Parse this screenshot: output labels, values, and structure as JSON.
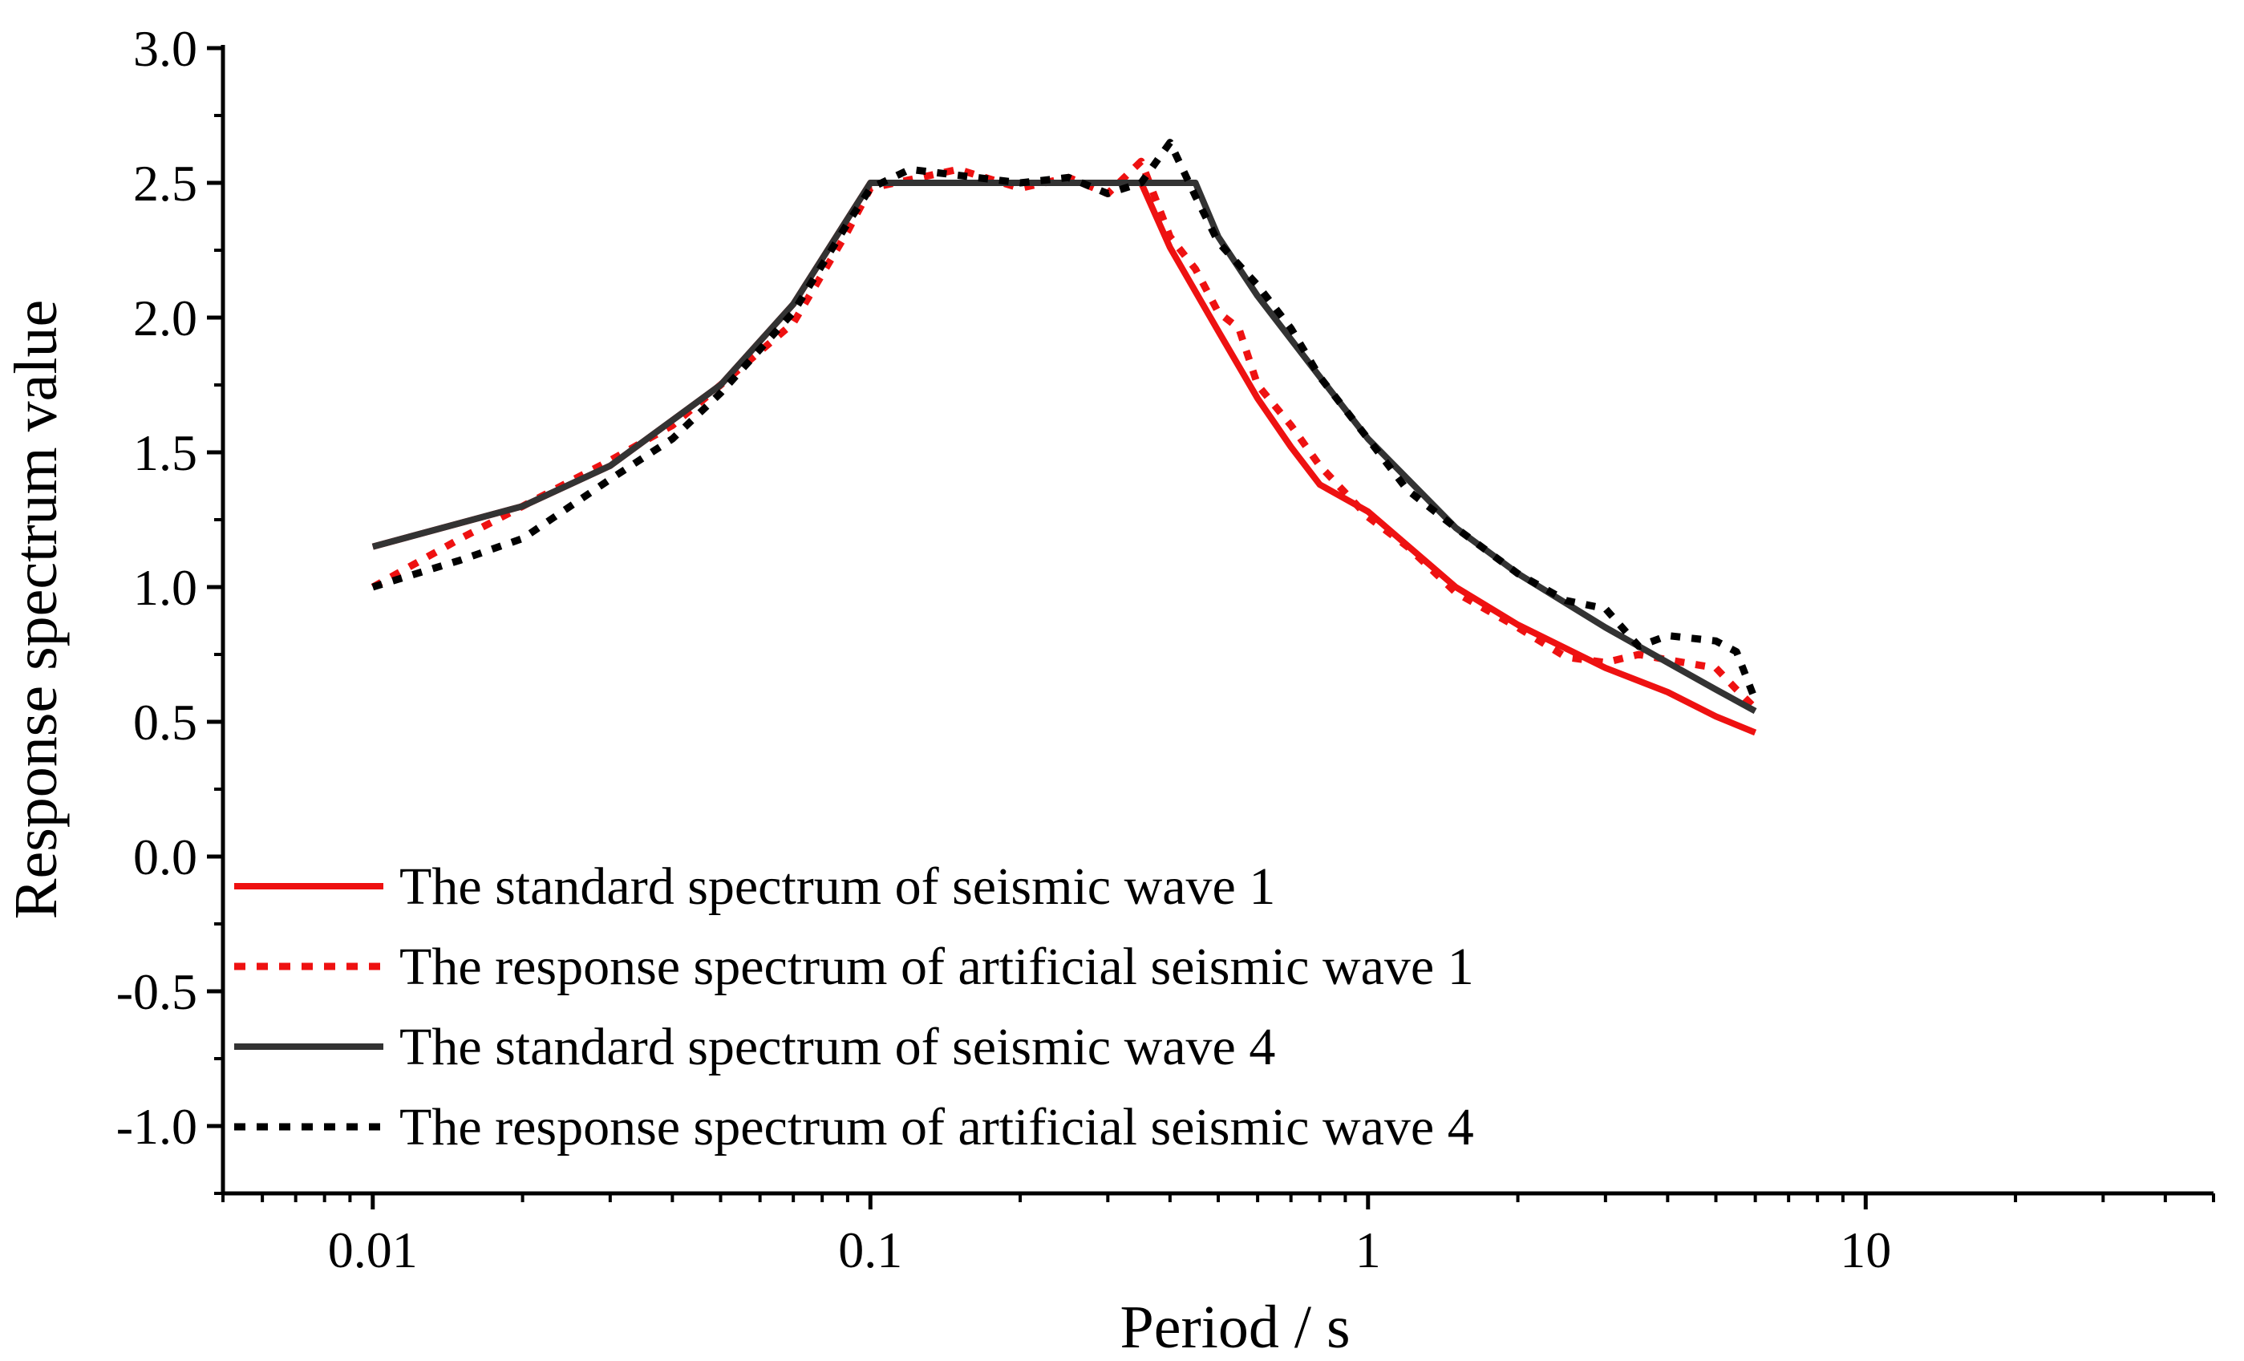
{
  "chart_data": {
    "type": "line",
    "title": "",
    "xlabel": "Period / s",
    "ylabel": "Response spectrum value",
    "xscale": "log",
    "xlim": [
      0.005,
      50
    ],
    "ylim": [
      -1.25,
      3.0
    ],
    "x_ticks": [
      0.01,
      0.1,
      1,
      10
    ],
    "x_tick_labels": [
      "0.01",
      "0.1",
      "1",
      "10"
    ],
    "y_ticks": [
      -1.0,
      -0.5,
      0.0,
      0.5,
      1.0,
      1.5,
      2.0,
      2.5,
      3.0
    ],
    "y_tick_labels": [
      "-1.0",
      "-0.5",
      "0.0",
      "0.5",
      "1.0",
      "1.5",
      "2.0",
      "2.5",
      "3.0"
    ],
    "grid": false,
    "legend_position": "bottom-left",
    "series": [
      {
        "name": "The standard spectrum of seismic wave 1",
        "color": "#ee1111",
        "style": "solid",
        "points": [
          [
            0.01,
            1.15
          ],
          [
            0.02,
            1.3
          ],
          [
            0.03,
            1.45
          ],
          [
            0.05,
            1.75
          ],
          [
            0.07,
            2.05
          ],
          [
            0.1,
            2.5
          ],
          [
            0.2,
            2.5
          ],
          [
            0.35,
            2.5
          ],
          [
            0.4,
            2.26
          ],
          [
            0.5,
            1.95
          ],
          [
            0.6,
            1.7
          ],
          [
            0.7,
            1.52
          ],
          [
            0.8,
            1.38
          ],
          [
            1.0,
            1.28
          ],
          [
            1.5,
            1.0
          ],
          [
            2.0,
            0.86
          ],
          [
            3.0,
            0.7
          ],
          [
            4.0,
            0.61
          ],
          [
            5.0,
            0.52
          ],
          [
            6.0,
            0.46
          ]
        ]
      },
      {
        "name": "The response spectrum of artificial seismic wave 1",
        "color": "#ee1111",
        "style": "dotted",
        "points": [
          [
            0.01,
            1.0
          ],
          [
            0.015,
            1.18
          ],
          [
            0.02,
            1.3
          ],
          [
            0.03,
            1.47
          ],
          [
            0.04,
            1.6
          ],
          [
            0.05,
            1.75
          ],
          [
            0.07,
            1.98
          ],
          [
            0.09,
            2.32
          ],
          [
            0.1,
            2.48
          ],
          [
            0.15,
            2.55
          ],
          [
            0.2,
            2.48
          ],
          [
            0.25,
            2.52
          ],
          [
            0.3,
            2.46
          ],
          [
            0.35,
            2.58
          ],
          [
            0.4,
            2.3
          ],
          [
            0.45,
            2.18
          ],
          [
            0.5,
            2.02
          ],
          [
            0.55,
            1.96
          ],
          [
            0.6,
            1.75
          ],
          [
            0.7,
            1.6
          ],
          [
            0.8,
            1.45
          ],
          [
            1.0,
            1.26
          ],
          [
            1.2,
            1.15
          ],
          [
            1.5,
            0.98
          ],
          [
            2.0,
            0.85
          ],
          [
            2.5,
            0.74
          ],
          [
            3.0,
            0.72
          ],
          [
            3.5,
            0.75
          ],
          [
            4.0,
            0.73
          ],
          [
            5.0,
            0.7
          ],
          [
            5.5,
            0.62
          ],
          [
            6.0,
            0.55
          ]
        ]
      },
      {
        "name": "The standard spectrum of seismic wave 4",
        "color": "#333333",
        "style": "solid",
        "points": [
          [
            0.01,
            1.15
          ],
          [
            0.02,
            1.3
          ],
          [
            0.03,
            1.45
          ],
          [
            0.05,
            1.75
          ],
          [
            0.07,
            2.05
          ],
          [
            0.1,
            2.5
          ],
          [
            0.2,
            2.5
          ],
          [
            0.3,
            2.5
          ],
          [
            0.45,
            2.5
          ],
          [
            0.5,
            2.3
          ],
          [
            0.6,
            2.08
          ],
          [
            0.8,
            1.78
          ],
          [
            1.0,
            1.55
          ],
          [
            1.5,
            1.22
          ],
          [
            2.0,
            1.05
          ],
          [
            3.0,
            0.85
          ],
          [
            4.0,
            0.72
          ],
          [
            5.0,
            0.62
          ],
          [
            6.0,
            0.54
          ]
        ]
      },
      {
        "name": "The response spectrum of artificial seismic wave 4",
        "color": "#000000",
        "style": "dotted",
        "points": [
          [
            0.01,
            1.0
          ],
          [
            0.015,
            1.1
          ],
          [
            0.02,
            1.18
          ],
          [
            0.03,
            1.4
          ],
          [
            0.04,
            1.55
          ],
          [
            0.05,
            1.72
          ],
          [
            0.07,
            2.02
          ],
          [
            0.09,
            2.35
          ],
          [
            0.1,
            2.48
          ],
          [
            0.12,
            2.55
          ],
          [
            0.2,
            2.5
          ],
          [
            0.25,
            2.52
          ],
          [
            0.3,
            2.46
          ],
          [
            0.35,
            2.5
          ],
          [
            0.4,
            2.65
          ],
          [
            0.45,
            2.45
          ],
          [
            0.5,
            2.28
          ],
          [
            0.6,
            2.12
          ],
          [
            0.7,
            1.96
          ],
          [
            0.8,
            1.78
          ],
          [
            1.0,
            1.55
          ],
          [
            1.2,
            1.36
          ],
          [
            1.5,
            1.22
          ],
          [
            2.0,
            1.05
          ],
          [
            2.5,
            0.95
          ],
          [
            3.0,
            0.92
          ],
          [
            3.5,
            0.78
          ],
          [
            4.0,
            0.82
          ],
          [
            5.0,
            0.8
          ],
          [
            5.5,
            0.76
          ],
          [
            6.0,
            0.58
          ]
        ]
      }
    ]
  }
}
